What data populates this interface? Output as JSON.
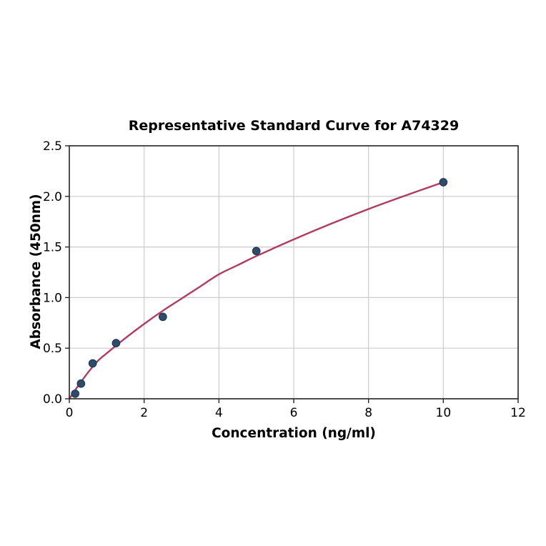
{
  "chart_data": {
    "type": "scatter",
    "title": "Representative Standard Curve for A74329",
    "xlabel": "Concentration (ng/ml)",
    "ylabel": "Absorbance (450nm)",
    "xlim": [
      0,
      12
    ],
    "ylim": [
      0,
      2.5
    ],
    "grid": true,
    "legend": "none",
    "xticks": [
      {
        "v": 0,
        "label": "0"
      },
      {
        "v": 2,
        "label": "2"
      },
      {
        "v": 4,
        "label": "4"
      },
      {
        "v": 6,
        "label": "6"
      },
      {
        "v": 8,
        "label": "8"
      },
      {
        "v": 10,
        "label": "10"
      },
      {
        "v": 12,
        "label": "12"
      }
    ],
    "yticks": [
      {
        "v": 0,
        "label": "0.0"
      },
      {
        "v": 0.5,
        "label": "0.5"
      },
      {
        "v": 1,
        "label": "1.0"
      },
      {
        "v": 1.5,
        "label": "1.5"
      },
      {
        "v": 2,
        "label": "2.0"
      },
      {
        "v": 2.5,
        "label": "2.5"
      }
    ],
    "points": [
      {
        "x": 0.156,
        "y": 0.05
      },
      {
        "x": 0.3125,
        "y": 0.15
      },
      {
        "x": 0.625,
        "y": 0.35
      },
      {
        "x": 1.25,
        "y": 0.55
      },
      {
        "x": 2.5,
        "y": 0.81
      },
      {
        "x": 5,
        "y": 1.46
      },
      {
        "x": 10,
        "y": 2.14
      }
    ],
    "fit_curve": [
      [
        0,
        0.0
      ],
      [
        0.1,
        0.055
      ],
      [
        0.25,
        0.135
      ],
      [
        0.5,
        0.26
      ],
      [
        0.75,
        0.37
      ],
      [
        1,
        0.45
      ],
      [
        1.5,
        0.6
      ],
      [
        2,
        0.74
      ],
      [
        2.5,
        0.87
      ],
      [
        3,
        0.99
      ],
      [
        3.5,
        1.11
      ],
      [
        4,
        1.23
      ],
      [
        4.5,
        1.32
      ],
      [
        5,
        1.41
      ],
      [
        6,
        1.575
      ],
      [
        7,
        1.73
      ],
      [
        8,
        1.875
      ],
      [
        9,
        2.01
      ],
      [
        10,
        2.14
      ]
    ],
    "colors": {
      "point_fill": "#2e4b6b",
      "point_edge": "#1e3852",
      "curve": "#b43a60",
      "grid": "#cbcbcb",
      "spine": "#262626",
      "tick": "#262626",
      "text": "#000000",
      "background": "#ffffff"
    }
  }
}
